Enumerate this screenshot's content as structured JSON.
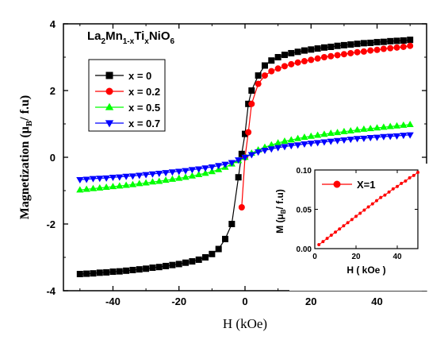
{
  "chart_data": [
    {
      "type": "line",
      "title_parts": {
        "a": "La",
        "b": "2",
        "c": "Mn",
        "d": "1-x",
        "e": "Ti",
        "f": "x",
        "g": "NiO",
        "h": "6"
      },
      "xlabel": "H (kOe)",
      "ylabel": "Magnetization (μB/ f.u)",
      "ylabel_parts": {
        "pre": "Magnetization (μ",
        "sub": "B",
        "post": "/ f.u)"
      },
      "xlim": [
        -55,
        55
      ],
      "ylim": [
        -4,
        4
      ],
      "xticks": [
        -40,
        -20,
        0,
        20,
        40
      ],
      "yticks": [
        -4,
        -2,
        0,
        2,
        4
      ],
      "legend_position": "top-left",
      "series": [
        {
          "name": "x = 0",
          "color": "#000000",
          "marker": "square",
          "x": [
            -50,
            -48,
            -46,
            -44,
            -42,
            -40,
            -38,
            -36,
            -34,
            -32,
            -30,
            -28,
            -26,
            -24,
            -22,
            -20,
            -18,
            -16,
            -14,
            -12,
            -10,
            -8,
            -6,
            -4,
            -2,
            -1,
            0,
            1,
            2,
            4,
            6,
            8,
            10,
            12,
            14,
            16,
            18,
            20,
            22,
            24,
            26,
            28,
            30,
            32,
            34,
            36,
            38,
            40,
            42,
            44,
            46,
            48,
            50
          ],
          "y": [
            -3.5,
            -3.49,
            -3.48,
            -3.46,
            -3.45,
            -3.43,
            -3.42,
            -3.4,
            -3.38,
            -3.36,
            -3.34,
            -3.31,
            -3.29,
            -3.26,
            -3.23,
            -3.2,
            -3.16,
            -3.12,
            -3.07,
            -3.0,
            -2.9,
            -2.75,
            -2.45,
            -2.0,
            -0.6,
            0.1,
            0.7,
            1.6,
            2.0,
            2.45,
            2.75,
            2.9,
            3.0,
            3.07,
            3.12,
            3.16,
            3.2,
            3.23,
            3.26,
            3.29,
            3.31,
            3.34,
            3.36,
            3.38,
            3.4,
            3.42,
            3.43,
            3.45,
            3.46,
            3.48,
            3.49,
            3.5,
            3.52
          ]
        },
        {
          "name": "x = 0.2",
          "color": "#ff0000",
          "marker": "circle",
          "x": [
            -1,
            0,
            1,
            2,
            4,
            6,
            8,
            10,
            12,
            14,
            16,
            18,
            20,
            22,
            24,
            26,
            28,
            30,
            32,
            34,
            36,
            38,
            40,
            42,
            44,
            46,
            48,
            50
          ],
          "y": [
            -1.5,
            0.0,
            0.75,
            1.6,
            2.2,
            2.45,
            2.58,
            2.66,
            2.73,
            2.79,
            2.84,
            2.88,
            2.92,
            2.96,
            3.0,
            3.03,
            3.06,
            3.09,
            3.12,
            3.15,
            3.17,
            3.2,
            3.22,
            3.25,
            3.27,
            3.29,
            3.31,
            3.34
          ]
        },
        {
          "name": "x = 0.5",
          "color": "#00ff00",
          "marker": "triangle-up",
          "x": [
            -50,
            -48,
            -46,
            -44,
            -42,
            -40,
            -38,
            -36,
            -34,
            -32,
            -30,
            -28,
            -26,
            -24,
            -22,
            -20,
            -18,
            -16,
            -14,
            -12,
            -10,
            -8,
            -6,
            -4,
            -2,
            0,
            2,
            4,
            6,
            8,
            10,
            12,
            14,
            16,
            18,
            20,
            22,
            24,
            26,
            28,
            30,
            32,
            34,
            36,
            38,
            40,
            42,
            44,
            46,
            48,
            50
          ],
          "y": [
            -0.98,
            -0.96,
            -0.94,
            -0.92,
            -0.9,
            -0.88,
            -0.86,
            -0.84,
            -0.82,
            -0.79,
            -0.77,
            -0.74,
            -0.72,
            -0.69,
            -0.66,
            -0.63,
            -0.6,
            -0.56,
            -0.52,
            -0.48,
            -0.43,
            -0.37,
            -0.3,
            -0.2,
            -0.1,
            0.0,
            0.12,
            0.22,
            0.3,
            0.37,
            0.43,
            0.48,
            0.52,
            0.56,
            0.6,
            0.63,
            0.66,
            0.69,
            0.72,
            0.74,
            0.77,
            0.79,
            0.82,
            0.84,
            0.86,
            0.88,
            0.9,
            0.92,
            0.94,
            0.96,
            0.98
          ]
        },
        {
          "name": "x = 0.7",
          "color": "#0000ff",
          "marker": "triangle-down",
          "x": [
            -50,
            -48,
            -46,
            -44,
            -42,
            -40,
            -38,
            -36,
            -34,
            -32,
            -30,
            -28,
            -26,
            -24,
            -22,
            -20,
            -18,
            -16,
            -14,
            -12,
            -10,
            -8,
            -6,
            -4,
            -2,
            0,
            2,
            4,
            6,
            8,
            10,
            12,
            14,
            16,
            18,
            20,
            22,
            24,
            26,
            28,
            30,
            32,
            34,
            36,
            38,
            40,
            42,
            44,
            46,
            48,
            50
          ],
          "y": [
            -0.67,
            -0.66,
            -0.64,
            -0.63,
            -0.62,
            -0.6,
            -0.59,
            -0.57,
            -0.56,
            -0.54,
            -0.52,
            -0.5,
            -0.48,
            -0.46,
            -0.44,
            -0.42,
            -0.4,
            -0.37,
            -0.35,
            -0.32,
            -0.29,
            -0.25,
            -0.21,
            -0.16,
            -0.08,
            0.0,
            0.08,
            0.16,
            0.21,
            0.25,
            0.29,
            0.32,
            0.35,
            0.37,
            0.4,
            0.42,
            0.44,
            0.46,
            0.48,
            0.5,
            0.52,
            0.54,
            0.56,
            0.57,
            0.59,
            0.6,
            0.62,
            0.63,
            0.64,
            0.66,
            0.67
          ]
        }
      ]
    },
    {
      "type": "line",
      "xlabel": "H ( kOe )",
      "ylabel": "M (μB/ f.u)",
      "ylabel_parts": {
        "pre": "M (μ",
        "sub": "B",
        "post": "/ f.u)"
      },
      "xlim": [
        0,
        50
      ],
      "ylim": [
        0,
        0.1
      ],
      "xticks": [
        0,
        20,
        40
      ],
      "xtick_labels": [
        "0",
        "20",
        "40"
      ],
      "yticks": [
        0,
        0.05,
        0.1
      ],
      "ytick_labels": [
        "0.00",
        "0.05",
        "0.10"
      ],
      "legend_position": "top-left",
      "series": [
        {
          "name": "X=1",
          "color": "#ff0000",
          "marker": "circle",
          "x": [
            2,
            4,
            6,
            8,
            10,
            12,
            14,
            16,
            18,
            20,
            22,
            24,
            26,
            28,
            30,
            32,
            34,
            36,
            38,
            40,
            42,
            44,
            46,
            48,
            50
          ],
          "y": [
            0.005,
            0.009,
            0.013,
            0.017,
            0.021,
            0.025,
            0.029,
            0.033,
            0.037,
            0.041,
            0.045,
            0.049,
            0.053,
            0.057,
            0.061,
            0.065,
            0.068,
            0.072,
            0.076,
            0.079,
            0.083,
            0.086,
            0.09,
            0.093,
            0.097
          ]
        }
      ]
    }
  ]
}
